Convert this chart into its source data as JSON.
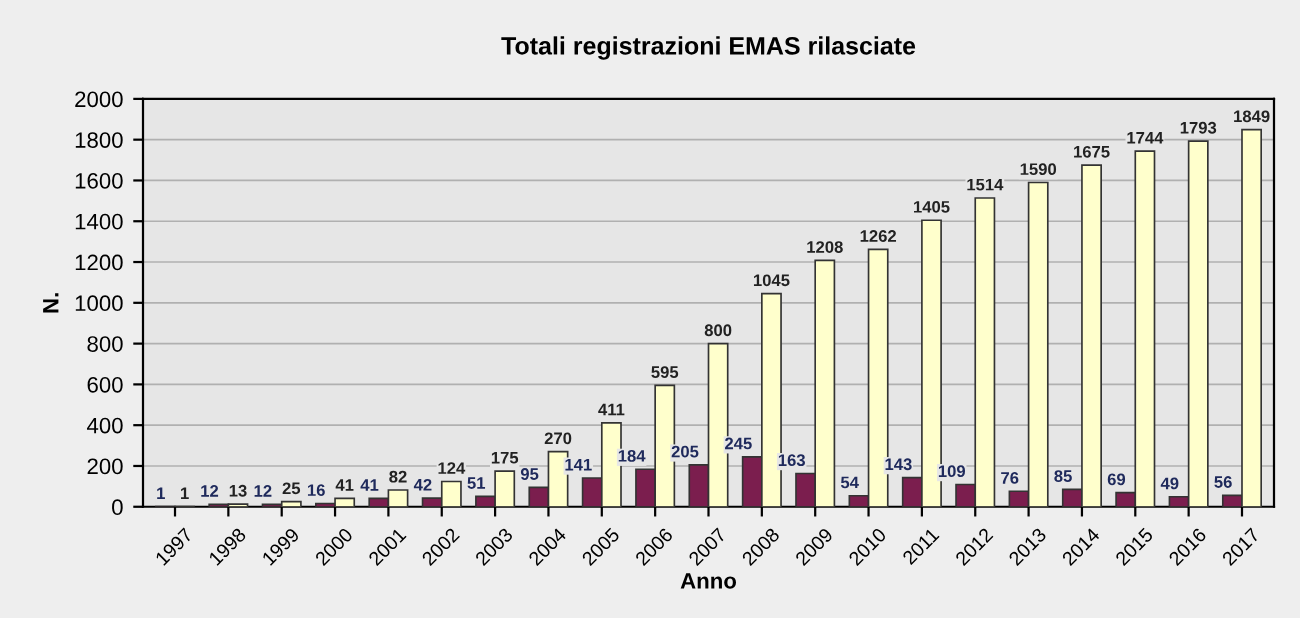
{
  "chart_data": {
    "type": "bar",
    "title": "Totali registrazioni EMAS rilasciate",
    "xlabel": "Anno",
    "ylabel": "N.",
    "categories": [
      "1997",
      "1998",
      "1999",
      "2000",
      "2001",
      "2002",
      "2003",
      "2004",
      "2005",
      "2006",
      "2007",
      "2008",
      "2009",
      "2010",
      "2011",
      "2012",
      "2013",
      "2014",
      "2015",
      "2016",
      "2017"
    ],
    "series": [
      {
        "color": "#7b1e4e",
        "values": [
          1,
          12,
          12,
          16,
          41,
          42,
          51,
          95,
          141,
          184,
          205,
          245,
          163,
          54,
          143,
          109,
          76,
          85,
          69,
          49,
          56
        ]
      },
      {
        "color": "#ffffcc",
        "values": [
          1,
          13,
          25,
          41,
          82,
          124,
          175,
          270,
          411,
          595,
          800,
          1045,
          1208,
          1262,
          1405,
          1514,
          1590,
          1675,
          1744,
          1793,
          1849
        ]
      }
    ],
    "ylim": [
      0,
      2000
    ],
    "yticks": [
      0,
      200,
      400,
      600,
      800,
      1000,
      1200,
      1400,
      1600,
      1800,
      2000
    ],
    "grid": "y",
    "data_labels": true,
    "legend": false
  }
}
